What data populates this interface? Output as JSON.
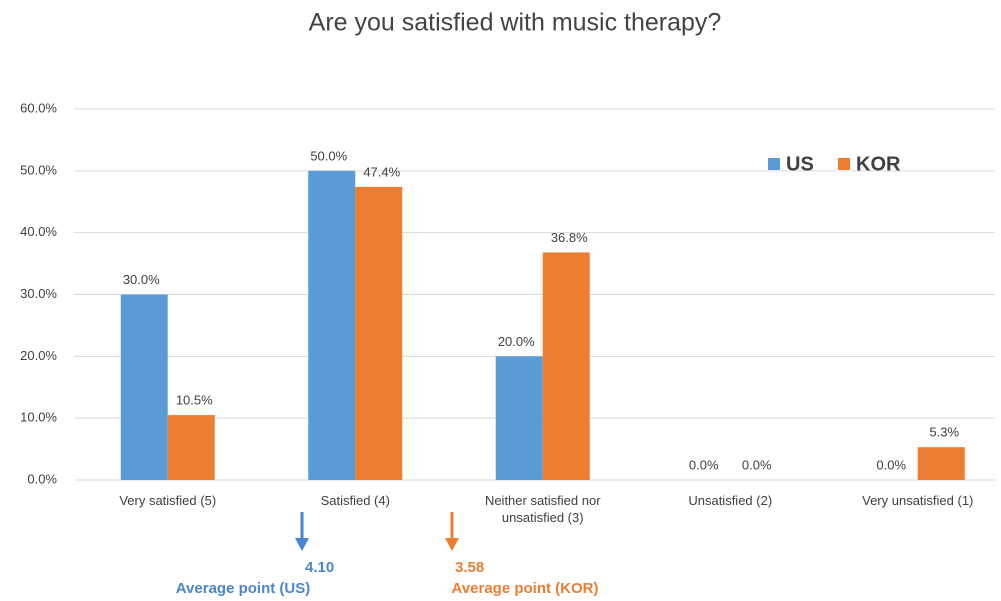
{
  "chart_data": {
    "type": "bar",
    "title": "Are you satisfied with music therapy?",
    "categories": [
      "Very satisfied (5)",
      "Satisfied (4)",
      "Neither satisfied nor unsatisfied (3)",
      "Unsatisfied (2)",
      "Very unsatisfied (1)"
    ],
    "series": [
      {
        "name": "US",
        "color": "#5b9bd5",
        "values": [
          30.0,
          50.0,
          20.0,
          0.0,
          0.0
        ],
        "value_labels": [
          "30.0%",
          "50.0%",
          "20.0%",
          "0.0%",
          "0.0%"
        ]
      },
      {
        "name": "KOR",
        "color": "#ed7d31",
        "values": [
          10.5,
          47.4,
          36.8,
          0.0,
          5.3
        ],
        "value_labels": [
          "10.5%",
          "47.4%",
          "36.8%",
          "0.0%",
          "5.3%"
        ]
      }
    ],
    "ylim": [
      0,
      60
    ],
    "yticks": [
      {
        "value": 0,
        "label": "0.0%"
      },
      {
        "value": 10,
        "label": "10.0%"
      },
      {
        "value": 20,
        "label": "20.0%"
      },
      {
        "value": 30,
        "label": "30.0%"
      },
      {
        "value": 40,
        "label": "40.0%"
      },
      {
        "value": 50,
        "label": "50.0%"
      },
      {
        "value": 60,
        "label": "60.0%"
      }
    ],
    "grid": true,
    "legend": "top-right",
    "annotations": [
      {
        "text": "4.10",
        "label": "Average point (US)",
        "color": "#4a86d0"
      },
      {
        "text": "3.58",
        "label": "Average point (KOR)",
        "color": "#ed7d31"
      }
    ]
  }
}
